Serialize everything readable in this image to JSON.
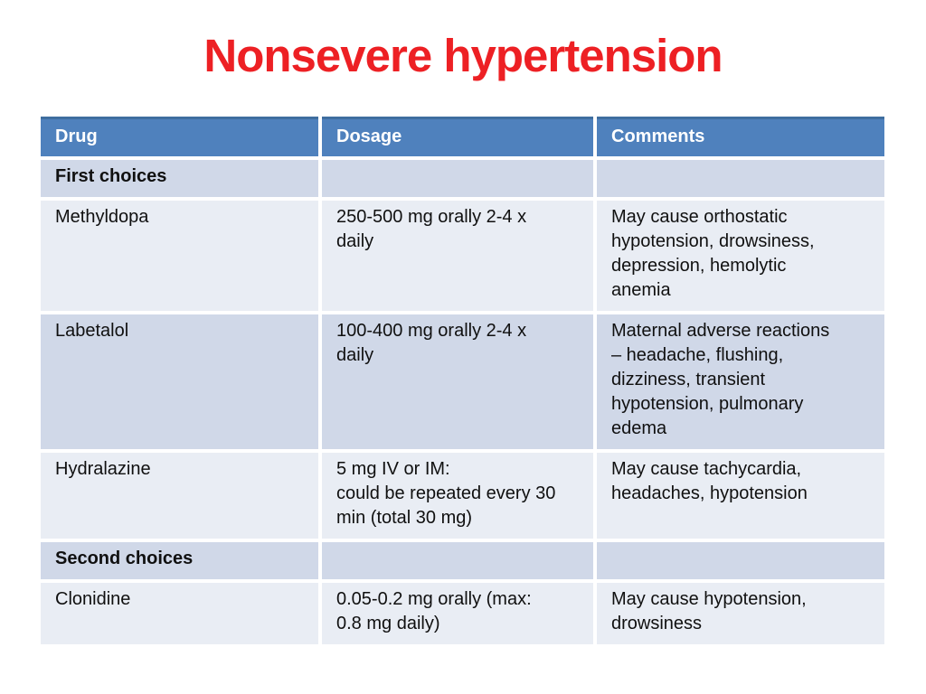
{
  "slide": {
    "title": "Nonsevere hypertension"
  },
  "table": {
    "headers": [
      "Drug",
      "Dosage",
      "Comments"
    ],
    "rows": [
      {
        "type": "section",
        "drug": "First choices",
        "dosage": "",
        "comments": ""
      },
      {
        "type": "data",
        "drug": "Methyldopa",
        "dosage": "250-500 mg orally 2-4 x\ndaily",
        "comments": "May cause orthostatic\nhypotension, drowsiness,\ndepression, hemolytic\nanemia"
      },
      {
        "type": "data",
        "drug": "Labetalol",
        "dosage": "100-400 mg orally 2-4 x\ndaily",
        "comments": "Maternal adverse reactions\n– headache, flushing,\ndizziness, transient\nhypotension, pulmonary\nedema"
      },
      {
        "type": "data",
        "drug": "Hydralazine",
        "dosage": "5 mg IV or IM:\ncould be repeated every 30\nmin (total 30 mg)",
        "comments": "May cause tachycardia,\nheadaches, hypotension"
      },
      {
        "type": "section",
        "drug": "Second choices",
        "dosage": "",
        "comments": ""
      },
      {
        "type": "data",
        "drug": "Clonidine",
        "dosage": "0.05-0.2 mg orally (max:\n0.8 mg daily)",
        "comments": "May cause hypotension,\ndrowsiness"
      }
    ]
  },
  "colors": {
    "title_red": "#ed2024",
    "header_blue": "#4f81bd",
    "header_top_edge": "#3f6e9f",
    "band_dark": "#d0d8e8",
    "band_light": "#e9edf4",
    "text": "#101010",
    "background": "#ffffff"
  }
}
